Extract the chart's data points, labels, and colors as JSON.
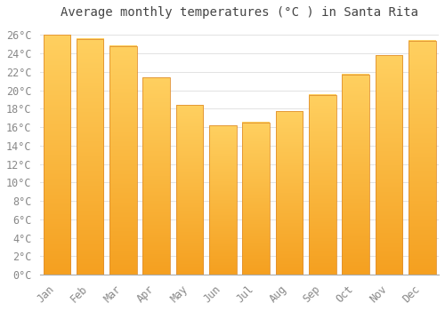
{
  "title": "Average monthly temperatures (°C ) in Santa Rita",
  "months": [
    "Jan",
    "Feb",
    "Mar",
    "Apr",
    "May",
    "Jun",
    "Jul",
    "Aug",
    "Sep",
    "Oct",
    "Nov",
    "Dec"
  ],
  "temperatures": [
    26.0,
    25.6,
    24.8,
    21.4,
    18.4,
    16.2,
    16.5,
    17.7,
    19.5,
    21.7,
    23.8,
    25.4
  ],
  "bar_color_top": "#FFD060",
  "bar_color_bottom": "#F5A020",
  "bar_edge_color": "#E09030",
  "background_color": "#FFFFFF",
  "grid_color": "#DDDDDD",
  "ylim": [
    0,
    27
  ],
  "ytick_max": 26,
  "ytick_step": 2,
  "title_fontsize": 10,
  "tick_fontsize": 8.5,
  "font_family": "monospace",
  "tick_color": "#888888"
}
